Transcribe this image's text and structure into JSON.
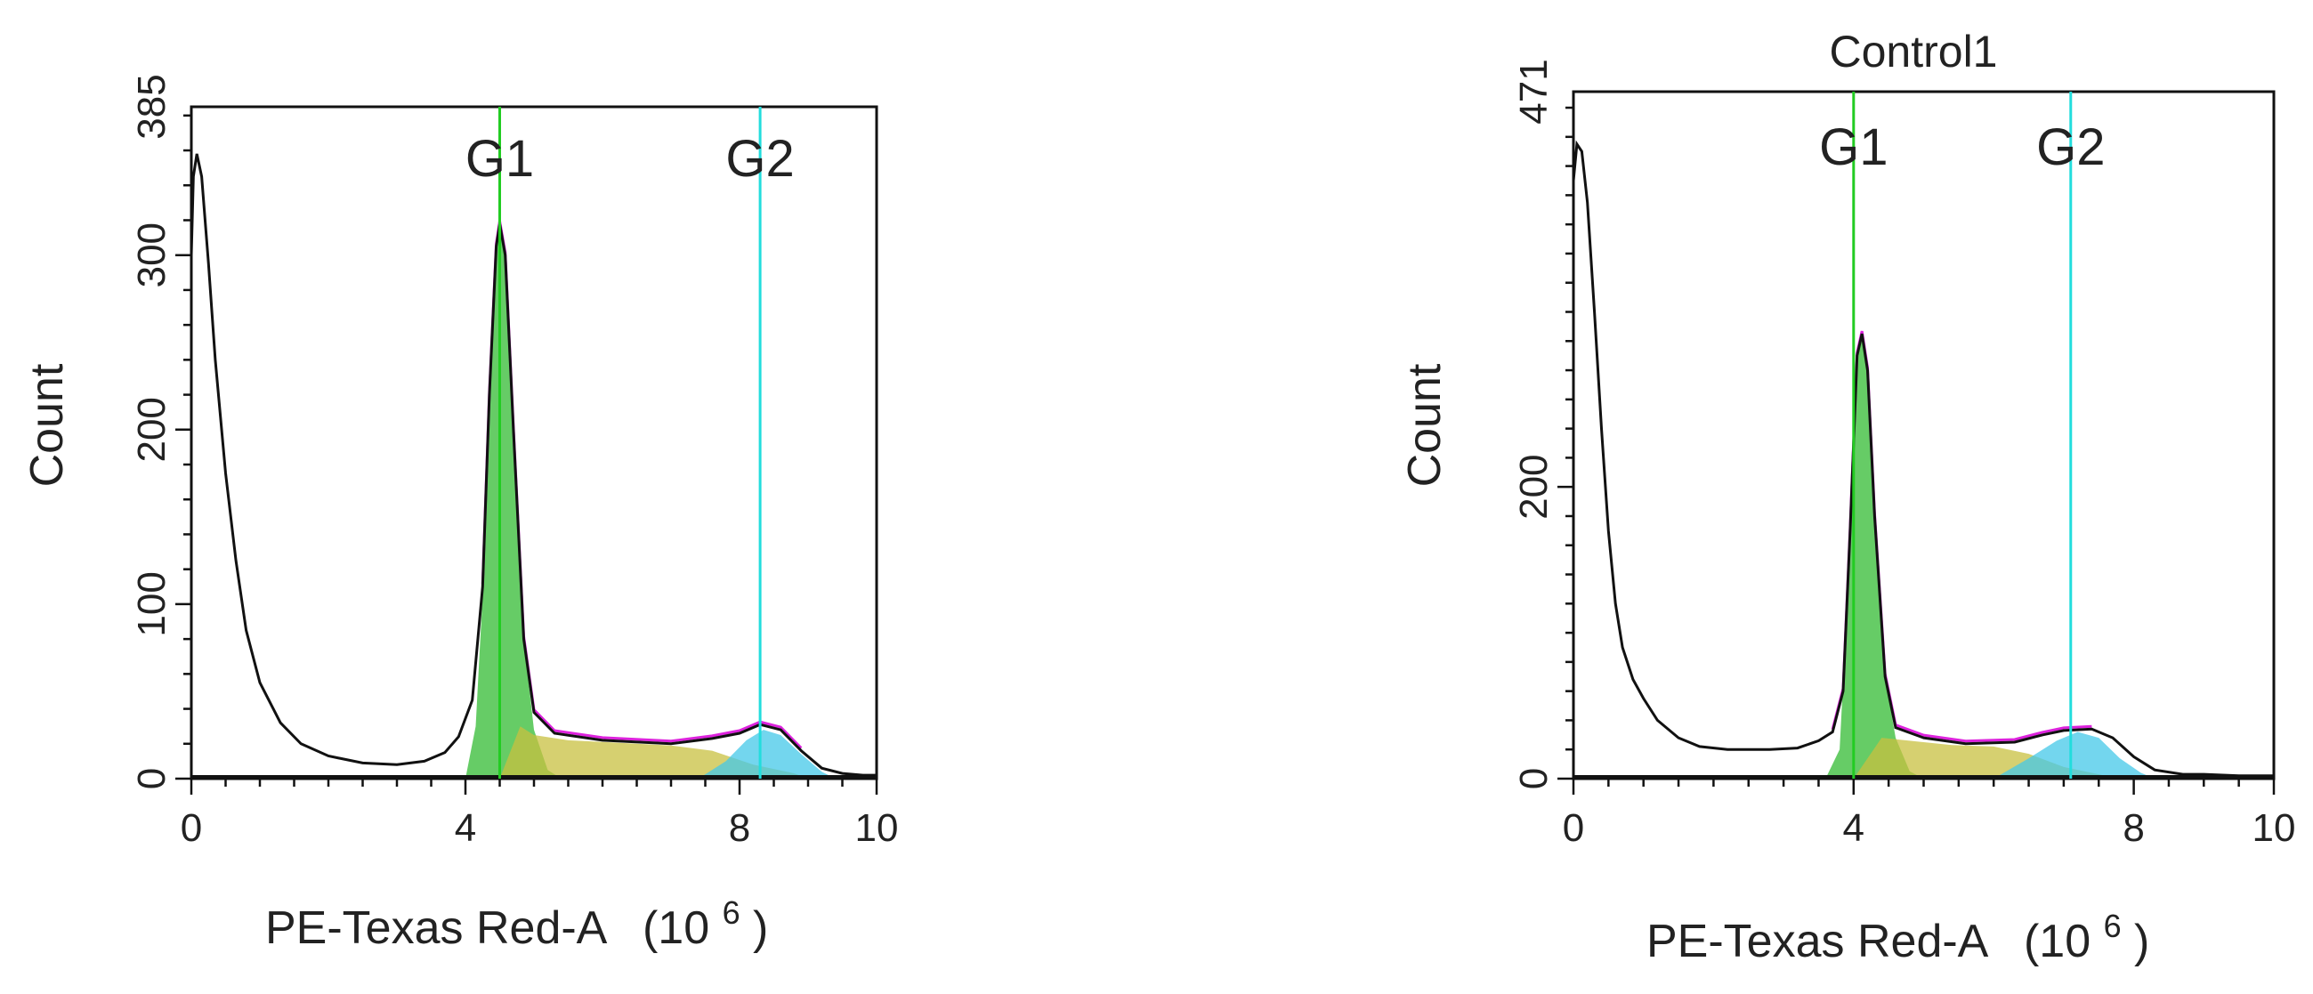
{
  "chart_data": [
    {
      "type": "histogram",
      "title": "",
      "xlabel": "PE-Texas Red-A",
      "xunit_base": "(10",
      "xunit_exp": "6",
      "xunit_close": ")",
      "ylabel": "Count",
      "xlim": [
        0,
        10
      ],
      "ylim": [
        0,
        385
      ],
      "xticks": [
        0,
        4,
        8,
        10
      ],
      "yticks": [
        0,
        100,
        200,
        300,
        385
      ],
      "ytick_labels": [
        "0",
        "100",
        "200",
        "300",
        "385"
      ],
      "markers": [
        {
          "label": "G1",
          "x": 4.5,
          "color": "#22cc22"
        },
        {
          "label": "G2",
          "x": 8.3,
          "color": "#22dddd"
        }
      ],
      "colors": {
        "outline": "#111111",
        "fit": "#dd22dd",
        "g1": "#33bb33",
        "s_phase": "#c8c040",
        "g2": "#44c8e8"
      },
      "series": [
        {
          "type": "line",
          "points": [
            [
              0,
              300
            ],
            [
              0.03,
              345
            ],
            [
              0.08,
              358
            ],
            [
              0.15,
              345
            ],
            [
              0.25,
              295
            ],
            [
              0.35,
              240
            ],
            [
              0.5,
              175
            ],
            [
              0.65,
              125
            ],
            [
              0.8,
              85
            ],
            [
              1.0,
              55
            ],
            [
              1.3,
              32
            ],
            [
              1.6,
              20
            ],
            [
              2.0,
              13
            ],
            [
              2.5,
              9
            ],
            [
              3.0,
              8
            ],
            [
              3.4,
              10
            ],
            [
              3.7,
              15
            ],
            [
              3.9,
              24
            ],
            [
              4.1,
              45
            ],
            [
              4.25,
              110
            ],
            [
              4.35,
              220
            ],
            [
              4.45,
              305
            ],
            [
              4.5,
              318
            ],
            [
              4.58,
              300
            ],
            [
              4.7,
              200
            ],
            [
              4.85,
              80
            ],
            [
              5.0,
              38
            ],
            [
              5.3,
              26
            ],
            [
              6.0,
              22
            ],
            [
              7.0,
              20
            ],
            [
              7.6,
              23
            ],
            [
              8.0,
              26
            ],
            [
              8.3,
              31
            ],
            [
              8.6,
              28
            ],
            [
              8.9,
              16
            ],
            [
              9.2,
              6
            ],
            [
              9.5,
              3
            ],
            [
              9.8,
              2
            ],
            [
              10.0,
              2
            ]
          ]
        },
        {
          "type": "area",
          "points": [
            [
              4.0,
              0
            ],
            [
              4.15,
              30
            ],
            [
              4.25,
              105
            ],
            [
              4.35,
              220
            ],
            [
              4.45,
              305
            ],
            [
              4.5,
              318
            ],
            [
              4.58,
              300
            ],
            [
              4.7,
              200
            ],
            [
              4.85,
              80
            ],
            [
              5.0,
              28
            ],
            [
              5.2,
              5
            ],
            [
              5.4,
              0
            ]
          ]
        },
        {
          "type": "area",
          "points": [
            [
              4.5,
              0
            ],
            [
              4.8,
              30
            ],
            [
              5.0,
              25
            ],
            [
              5.5,
              22
            ],
            [
              6.0,
              21
            ],
            [
              7.0,
              19
            ],
            [
              7.6,
              16
            ],
            [
              8.2,
              8
            ],
            [
              8.8,
              3
            ],
            [
              9.0,
              0
            ]
          ]
        },
        {
          "type": "area",
          "points": [
            [
              7.4,
              0
            ],
            [
              7.8,
              10
            ],
            [
              8.1,
              22
            ],
            [
              8.35,
              28
            ],
            [
              8.6,
              25
            ],
            [
              8.9,
              14
            ],
            [
              9.2,
              4
            ],
            [
              9.4,
              0
            ]
          ]
        }
      ]
    },
    {
      "type": "histogram",
      "title": "Control1",
      "xlabel": "PE-Texas Red-A",
      "xunit_base": "(10",
      "xunit_exp": "6",
      "xunit_close": ")",
      "ylabel": "Count",
      "xlim": [
        0,
        10
      ],
      "ylim": [
        0,
        471
      ],
      "xticks": [
        0,
        4,
        8,
        10
      ],
      "yticks": [
        0,
        200,
        471
      ],
      "ytick_labels": [
        "0",
        "200",
        "471"
      ],
      "markers": [
        {
          "label": "G1",
          "x": 4.0,
          "color": "#22cc22"
        },
        {
          "label": "G2",
          "x": 7.1,
          "color": "#22dddd"
        }
      ],
      "colors": {
        "outline": "#111111",
        "fit": "#dd22dd",
        "g1": "#33bb33",
        "s_phase": "#c8c040",
        "g2": "#44c8e8"
      },
      "series": [
        {
          "type": "line",
          "points": [
            [
              0,
              410
            ],
            [
              0.05,
              435
            ],
            [
              0.12,
              430
            ],
            [
              0.2,
              395
            ],
            [
              0.3,
              320
            ],
            [
              0.4,
              240
            ],
            [
              0.5,
              170
            ],
            [
              0.6,
              120
            ],
            [
              0.7,
              90
            ],
            [
              0.85,
              68
            ],
            [
              1.0,
              55
            ],
            [
              1.2,
              40
            ],
            [
              1.5,
              28
            ],
            [
              1.8,
              22
            ],
            [
              2.2,
              20
            ],
            [
              2.8,
              20
            ],
            [
              3.2,
              21
            ],
            [
              3.5,
              26
            ],
            [
              3.7,
              32
            ],
            [
              3.85,
              60
            ],
            [
              3.95,
              170
            ],
            [
              4.05,
              290
            ],
            [
              4.12,
              305
            ],
            [
              4.2,
              280
            ],
            [
              4.3,
              180
            ],
            [
              4.45,
              70
            ],
            [
              4.6,
              35
            ],
            [
              5.0,
              28
            ],
            [
              5.6,
              24
            ],
            [
              6.3,
              25
            ],
            [
              6.7,
              30
            ],
            [
              7.0,
              33
            ],
            [
              7.4,
              34
            ],
            [
              7.7,
              28
            ],
            [
              8.0,
              15
            ],
            [
              8.3,
              6
            ],
            [
              8.7,
              3
            ],
            [
              9.0,
              3
            ],
            [
              9.5,
              2
            ],
            [
              10.0,
              2
            ]
          ]
        },
        {
          "type": "area",
          "points": [
            [
              3.6,
              0
            ],
            [
              3.8,
              20
            ],
            [
              3.95,
              160
            ],
            [
              4.05,
              285
            ],
            [
              4.12,
              305
            ],
            [
              4.2,
              280
            ],
            [
              4.3,
              180
            ],
            [
              4.45,
              70
            ],
            [
              4.6,
              28
            ],
            [
              4.8,
              5
            ],
            [
              5.0,
              0
            ]
          ]
        },
        {
          "type": "area",
          "points": [
            [
              4.0,
              0
            ],
            [
              4.4,
              28
            ],
            [
              4.8,
              26
            ],
            [
              5.4,
              23
            ],
            [
              6.0,
              22
            ],
            [
              6.5,
              17
            ],
            [
              7.0,
              8
            ],
            [
              7.5,
              3
            ],
            [
              7.8,
              0
            ]
          ]
        },
        {
          "type": "area",
          "points": [
            [
              6.0,
              0
            ],
            [
              6.5,
              14
            ],
            [
              6.9,
              26
            ],
            [
              7.2,
              32
            ],
            [
              7.5,
              28
            ],
            [
              7.8,
              14
            ],
            [
              8.1,
              4
            ],
            [
              8.3,
              0
            ]
          ]
        }
      ]
    }
  ]
}
